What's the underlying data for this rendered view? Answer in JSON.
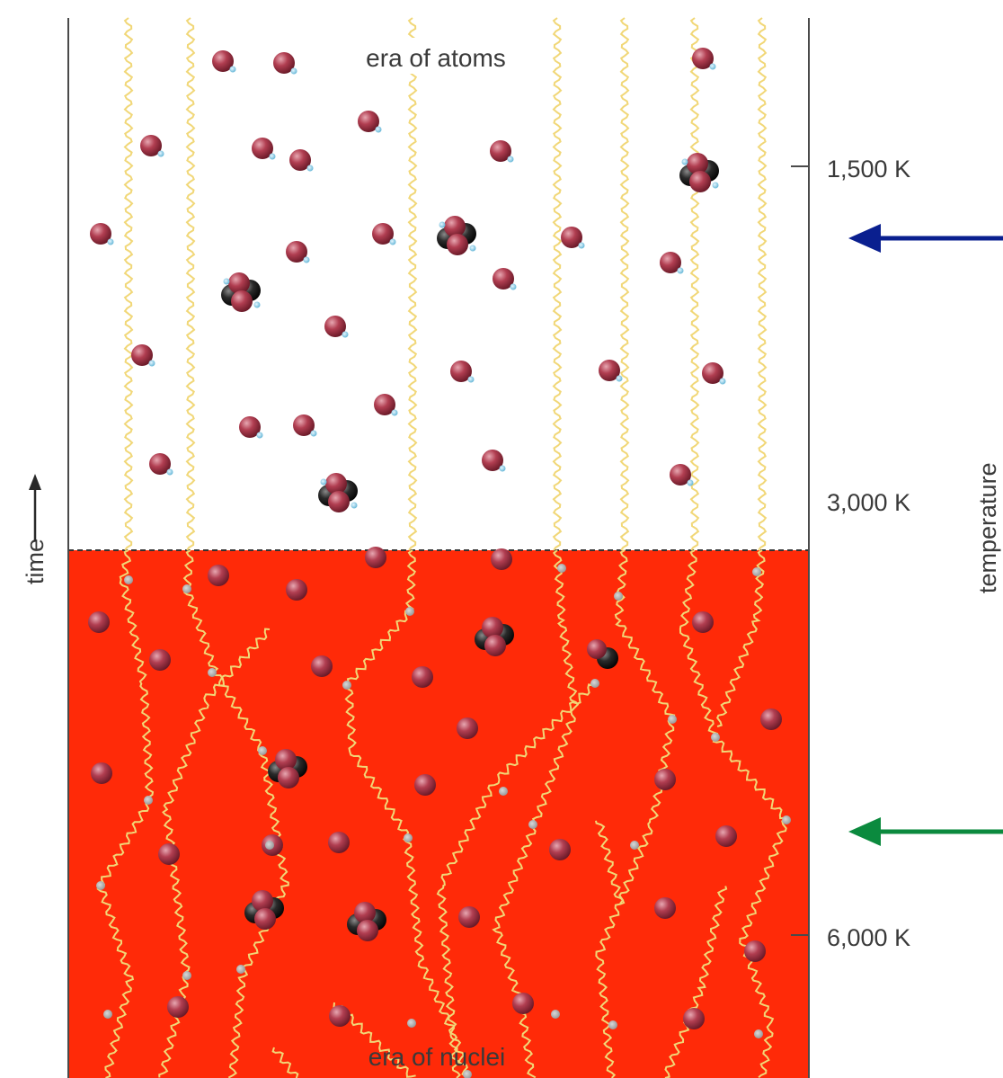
{
  "diagram": {
    "top_region_label": "era of atoms",
    "bottom_region_label": "era of nuclei",
    "time_axis_label": "time",
    "temperature_axis_label": "temperature",
    "temperature_ticks": [
      "1,500 K",
      "3,000 K",
      "6,000 K"
    ],
    "colors": {
      "hot_region": "#ff2a08",
      "photon": "#f1d777",
      "nucleus": "#a33044",
      "electron": "#8fd0e8",
      "neutron": "#222222",
      "arrow_blue": "#0a1f8f",
      "arrow_green": "#0b8a3e"
    }
  }
}
